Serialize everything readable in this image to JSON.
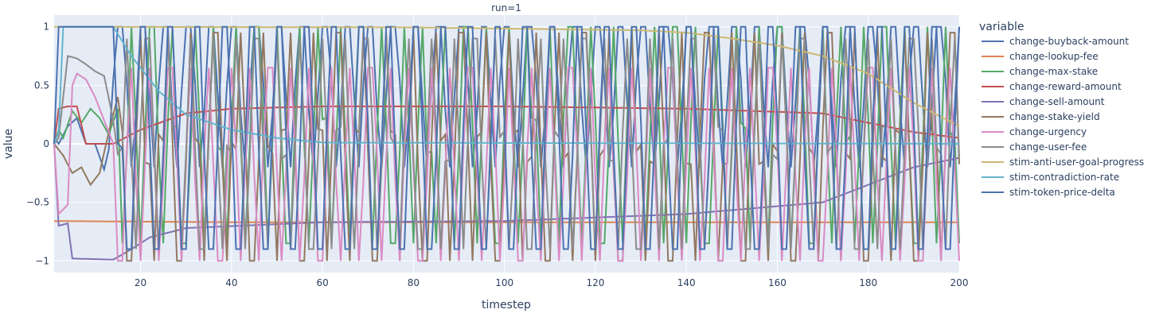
{
  "chart_data": {
    "type": "line",
    "title": "run=1",
    "xlabel": "timestep",
    "ylabel": "value",
    "xlim": [
      1,
      200
    ],
    "ylim": [
      -1.1,
      1.1
    ],
    "x_ticks": [
      20,
      40,
      60,
      80,
      100,
      120,
      140,
      160,
      180,
      200
    ],
    "y_ticks": [
      -1,
      -0.5,
      0,
      0.5,
      1
    ],
    "y_tick_labels": [
      "−1",
      "−0.5",
      "0",
      "0.5",
      "1"
    ],
    "grid": true,
    "legend_title": "variable",
    "legend_position": "right",
    "series": [
      {
        "name": "change-buyback-amount",
        "color": "#4C72B0",
        "kind": "keyframes",
        "points": [
          [
            1,
            0.05
          ],
          [
            2,
            0.0
          ],
          [
            4,
            0.15
          ],
          [
            6,
            0.22
          ],
          [
            8,
            0.0
          ],
          [
            10,
            0.0
          ],
          [
            12,
            -0.22
          ],
          [
            13,
            -0.05
          ],
          [
            14,
            0.55
          ]
        ],
        "osc_from": 14,
        "osc_to": 200,
        "osc_period": 5,
        "osc_lo": -0.2,
        "osc_hi": 1.0,
        "osc_phase": 0
      },
      {
        "name": "change-lookup-fee",
        "color": "#DD8452",
        "kind": "keyframes",
        "points": [
          [
            1,
            -0.66
          ],
          [
            40,
            -0.67
          ],
          [
            60,
            -0.67
          ],
          [
            200,
            -0.67
          ]
        ]
      },
      {
        "name": "change-max-stake",
        "color": "#55A868",
        "kind": "keyframes",
        "points": [
          [
            1,
            0.0
          ],
          [
            2,
            0.12
          ],
          [
            3,
            0.05
          ],
          [
            5,
            0.28
          ],
          [
            7,
            0.18
          ],
          [
            9,
            0.3
          ],
          [
            11,
            0.22
          ],
          [
            13,
            0.08
          ],
          [
            15,
            0.3
          ]
        ],
        "osc_from": 15,
        "osc_to": 200,
        "osc_period": 4.6,
        "osc_lo": -0.85,
        "osc_hi": 1.0,
        "osc_phase": 1
      },
      {
        "name": "change-reward-amount",
        "color": "#C44E52",
        "kind": "keyframes",
        "points": [
          [
            1,
            0.0
          ],
          [
            2,
            0.3
          ],
          [
            4,
            0.32
          ],
          [
            6,
            0.32
          ],
          [
            8,
            0.0
          ],
          [
            14,
            0.0
          ],
          [
            20,
            0.12
          ],
          [
            30,
            0.26
          ],
          [
            40,
            0.3
          ],
          [
            60,
            0.32
          ],
          [
            100,
            0.32
          ],
          [
            140,
            0.3
          ],
          [
            170,
            0.26
          ],
          [
            190,
            0.1
          ],
          [
            200,
            0.05
          ]
        ]
      },
      {
        "name": "change-sell-amount",
        "color": "#8172B3",
        "kind": "keyframes",
        "points": [
          [
            1,
            0.0
          ],
          [
            2,
            -0.7
          ],
          [
            4,
            -0.68
          ],
          [
            5,
            -0.98
          ],
          [
            14,
            -0.99
          ],
          [
            18,
            -0.9
          ],
          [
            22,
            -0.8
          ],
          [
            30,
            -0.72
          ],
          [
            60,
            -0.67
          ],
          [
            100,
            -0.66
          ],
          [
            140,
            -0.6
          ],
          [
            170,
            -0.5
          ],
          [
            190,
            -0.2
          ],
          [
            200,
            -0.12
          ]
        ]
      },
      {
        "name": "change-stake-yield",
        "color": "#937860",
        "kind": "keyframes",
        "points": [
          [
            1,
            0.0
          ],
          [
            3,
            -0.1
          ],
          [
            5,
            -0.25
          ],
          [
            7,
            -0.2
          ],
          [
            9,
            -0.35
          ],
          [
            11,
            -0.25
          ],
          [
            13,
            0.1
          ],
          [
            15,
            0.4
          ]
        ],
        "osc_from": 15,
        "osc_to": 200,
        "osc_period": 5.4,
        "osc_lo": -1.0,
        "osc_hi": 0.95,
        "osc_phase": 2
      },
      {
        "name": "change-urgency",
        "color": "#DA8BC3",
        "kind": "keyframes",
        "points": [
          [
            1,
            0.0
          ],
          [
            2,
            -0.6
          ],
          [
            4,
            -0.52
          ],
          [
            5,
            0.5
          ],
          [
            6,
            0.6
          ],
          [
            8,
            0.55
          ],
          [
            10,
            0.4
          ],
          [
            12,
            0.2
          ],
          [
            14,
            0.0
          ]
        ],
        "osc_from": 14,
        "osc_to": 200,
        "osc_period": 4.4,
        "osc_lo": -1.0,
        "osc_hi": 0.65,
        "osc_phase": 0.5
      },
      {
        "name": "change-user-fee",
        "color": "#8C8C8C",
        "kind": "keyframes",
        "points": [
          [
            1,
            0.0
          ],
          [
            2,
            0.05
          ],
          [
            4,
            0.75
          ],
          [
            6,
            0.73
          ],
          [
            8,
            0.68
          ],
          [
            10,
            0.62
          ],
          [
            12,
            0.58
          ],
          [
            14,
            0.2
          ]
        ],
        "osc_from": 14,
        "osc_to": 200,
        "osc_period": 4.8,
        "osc_lo": -0.9,
        "osc_hi": 0.9,
        "osc_phase": 3
      },
      {
        "name": "stim-anti-user-goal-progress",
        "color": "#CCB974",
        "kind": "keyframes",
        "points": [
          [
            1,
            1.0
          ],
          [
            80,
            0.995
          ],
          [
            110,
            0.98
          ],
          [
            130,
            0.97
          ],
          [
            140,
            0.95
          ],
          [
            150,
            0.9
          ],
          [
            160,
            0.84
          ],
          [
            170,
            0.75
          ],
          [
            180,
            0.6
          ],
          [
            190,
            0.35
          ],
          [
            200,
            0.15
          ]
        ]
      },
      {
        "name": "stim-contradiction-rate",
        "color": "#64B5CD",
        "kind": "keyframes",
        "points": [
          [
            1,
            0.0
          ],
          [
            2,
            0.1
          ],
          [
            3,
            1.0
          ],
          [
            14,
            1.0
          ],
          [
            18,
            0.75
          ],
          [
            24,
            0.45
          ],
          [
            30,
            0.25
          ],
          [
            40,
            0.12
          ],
          [
            50,
            0.05
          ],
          [
            60,
            0.01
          ],
          [
            200,
            0.0
          ]
        ]
      },
      {
        "name": "stim-token-price-delta",
        "color": "#4C72B0",
        "kind": "keyframes",
        "points": [
          [
            1,
            0.0
          ],
          [
            2,
            1.0
          ],
          [
            14,
            1.0
          ],
          [
            15,
            0.0
          ]
        ],
        "osc_from": 15,
        "osc_to": 200,
        "osc_period": 6,
        "osc_lo": -0.9,
        "osc_hi": 1.0,
        "osc_phase": 4
      }
    ]
  }
}
